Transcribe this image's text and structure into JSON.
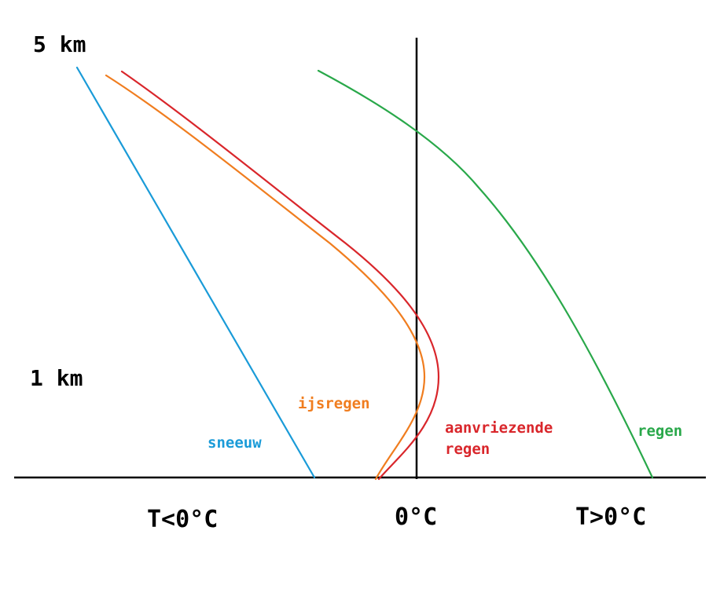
{
  "heights": {
    "top": "5 km",
    "low": "1 km"
  },
  "x_axis": {
    "cold": "T<0°C",
    "zero": "0°C",
    "warm": "T>0°C"
  },
  "profiles": {
    "sneeuw": {
      "label": "sneeuw",
      "color": "#1a9bd8"
    },
    "ijsregen": {
      "label": "ijsregen",
      "color": "#f07d1f"
    },
    "aanvriezende": {
      "line1": "aanvriezende",
      "line2": "regen",
      "color": "#d9262b"
    },
    "regen": {
      "label": "regen",
      "color": "#29a84a"
    }
  }
}
